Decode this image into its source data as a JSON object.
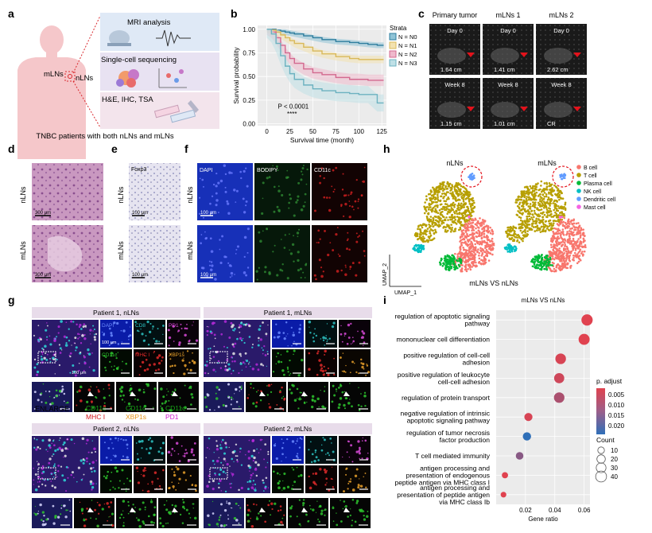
{
  "panels": {
    "a": "a",
    "b": "b",
    "c": "c",
    "d": "d",
    "e": "e",
    "f": "f",
    "g": "g",
    "h": "h",
    "i": "i"
  },
  "panel_a": {
    "mri": "MRI analysis",
    "scseq": "Single-cell sequencing",
    "staining": "H&E, IHC, TSA",
    "mlns": "mLNs",
    "nlns": "nLNs",
    "caption": "TNBC patients with both nLNs and mLNs"
  },
  "panel_c": {
    "cols": [
      "Primary tumor",
      "mLNs 1",
      "mLNs 2"
    ],
    "day0": "Day 0",
    "week8": "Week 8",
    "sizes_day0": [
      "1.64 cm",
      "1.41 cm",
      "2.62 cm"
    ],
    "sizes_week8": [
      "1.15 cm",
      "1.01 cm",
      "CR"
    ]
  },
  "panel_d": {
    "rows": [
      "nLNs",
      "mLNs"
    ],
    "scale": "300 μm"
  },
  "panel_e": {
    "rows": [
      "nLNs",
      "mLNs"
    ],
    "marker": "Foxp3",
    "scale": "100 μm"
  },
  "panel_f": {
    "rows": [
      "nLNs",
      "mLNs"
    ],
    "cols": [
      "DAPI",
      "BODIPY",
      "CD11c"
    ],
    "scale": "100 μm"
  },
  "panel_g": {
    "p1_nlns": "Patient 1, nLNs",
    "p1_mlns": "Patient 1, mLNs",
    "p2_nlns": "Patient 2, nLNs",
    "p2_mlns": "Patient 2, mLNs",
    "channels": [
      "DAPI",
      "CD8",
      "PD1",
      "CD11c",
      "MHC I",
      "XBP1s"
    ],
    "scale": "100 μm",
    "enlarge": "ENLARGE",
    "legend": [
      {
        "l1": "CD11c",
        "l2": "MHC I",
        "c1": "#17a317",
        "c2": "#d6161a"
      },
      {
        "l1": "CD11c",
        "l2": "XBP1s",
        "c1": "#17a317",
        "c2": "#e59319"
      },
      {
        "l1": "CD11c",
        "l2": "PD1",
        "c1": "#17a317",
        "c2": "#cc1acc"
      }
    ]
  },
  "panel_h": {
    "left": "nLNs",
    "right": "mLNs",
    "xlabel": "UMAP_1",
    "ylabel": "UMAP_2",
    "subtitle": "mLNs VS nLNs",
    "legend": [
      {
        "name": "B cell",
        "color": "#f8766d"
      },
      {
        "name": "T cell",
        "color": "#b79f00"
      },
      {
        "name": "Plasma cell",
        "color": "#00ba38"
      },
      {
        "name": "NK cell",
        "color": "#00bfc4"
      },
      {
        "name": "Dendritic cell",
        "color": "#619cff"
      },
      {
        "name": "Mast cell",
        "color": "#f564e3"
      }
    ]
  },
  "chart_data": [
    {
      "panel": "b",
      "type": "line",
      "title": "",
      "xlabel": "Survival time (month)",
      "ylabel": "Survival probability",
      "xlim": [
        -10,
        130
      ],
      "ylim": [
        -0.02,
        1.04
      ],
      "xticks": [
        0,
        25,
        50,
        75,
        100,
        125
      ],
      "yticks": [
        0.0,
        0.25,
        0.5,
        0.75,
        1.0
      ],
      "yticklabels": [
        "0.00",
        "0.25",
        "0.50",
        "0.75",
        "1.00"
      ],
      "legend_title": "Strata",
      "annotation": "P < 0.0001",
      "annotation2": "****",
      "series": [
        {
          "name": "N = N0",
          "color": "#2e7d9e",
          "fill": "#8fc3d6",
          "x": [
            0,
            5,
            10,
            15,
            20,
            25,
            30,
            40,
            50,
            60,
            75,
            90,
            100,
            110,
            120,
            127
          ],
          "y": [
            1.0,
            1.0,
            0.99,
            0.98,
            0.97,
            0.96,
            0.95,
            0.93,
            0.91,
            0.89,
            0.87,
            0.86,
            0.85,
            0.84,
            0.83,
            0.83
          ],
          "band": 0.03
        },
        {
          "name": "N = N1",
          "color": "#d9b95a",
          "fill": "#f3e2b0",
          "x": [
            0,
            5,
            10,
            15,
            20,
            25,
            30,
            40,
            50,
            60,
            75,
            90,
            100,
            110,
            120,
            127
          ],
          "y": [
            1.0,
            0.99,
            0.97,
            0.94,
            0.91,
            0.88,
            0.85,
            0.81,
            0.77,
            0.74,
            0.71,
            0.69,
            0.68,
            0.68,
            0.68,
            0.68
          ],
          "band": 0.04
        },
        {
          "name": "N = N2",
          "color": "#d3698f",
          "fill": "#efb9cc",
          "x": [
            0,
            5,
            10,
            15,
            20,
            25,
            30,
            40,
            50,
            60,
            75,
            90,
            100,
            110,
            120,
            127
          ],
          "y": [
            1.0,
            0.97,
            0.91,
            0.83,
            0.75,
            0.69,
            0.64,
            0.58,
            0.54,
            0.52,
            0.49,
            0.47,
            0.47,
            0.46,
            0.46,
            0.46
          ],
          "band": 0.06
        },
        {
          "name": "N = N3",
          "color": "#6cb2c0",
          "fill": "#bfe0e6",
          "x": [
            0,
            5,
            10,
            15,
            20,
            25,
            30,
            40,
            50,
            60,
            75,
            90,
            100,
            110,
            120,
            127
          ],
          "y": [
            1.0,
            0.95,
            0.85,
            0.72,
            0.61,
            0.53,
            0.47,
            0.41,
            0.37,
            0.35,
            0.33,
            0.32,
            0.31,
            0.31,
            0.22,
            0.22
          ],
          "band": 0.09
        }
      ]
    },
    {
      "panel": "i",
      "type": "scatter",
      "title": "mLNs VS nLNs",
      "xlabel": "Gene ratio",
      "xlim": [
        0.0,
        0.064
      ],
      "xticks": [
        0.02,
        0.04,
        0.06
      ],
      "xticklabels": [
        "0.02",
        "0.04",
        "0.06"
      ],
      "color_legend_title": "p. adjust",
      "color_ticks": [
        "0.005",
        "0.010",
        "0.015",
        "0.020"
      ],
      "size_legend_title": "Count",
      "size_ticks": [
        "10",
        "20",
        "30",
        "40"
      ],
      "terms": [
        {
          "label": [
            "regulation of apoptotic signaling",
            "pathway"
          ],
          "ratio": 0.062,
          "count": 43,
          "padj": 0.001
        },
        {
          "label": [
            "mononuclear cell differentiation"
          ],
          "ratio": 0.06,
          "count": 41,
          "padj": 0.001
        },
        {
          "label": [
            "positive regulation of cell-cell",
            "adhesion"
          ],
          "ratio": 0.044,
          "count": 37,
          "padj": 0.002
        },
        {
          "label": [
            "positive regulation of leukocyte",
            "cell-cell adhesion"
          ],
          "ratio": 0.043,
          "count": 33,
          "padj": 0.003
        },
        {
          "label": [
            "regulation of protein transport"
          ],
          "ratio": 0.043,
          "count": 36,
          "padj": 0.007
        },
        {
          "label": [
            "negative regulation of intrinsic",
            "apoptotic signaling pathway"
          ],
          "ratio": 0.022,
          "count": 18,
          "padj": 0.002
        },
        {
          "label": [
            "regulation of tumor necrosis",
            "factor production"
          ],
          "ratio": 0.021,
          "count": 19,
          "padj": 0.021
        },
        {
          "label": [
            "T cell mediated immunity"
          ],
          "ratio": 0.016,
          "count": 15,
          "padj": 0.011
        },
        {
          "label": [
            "antigen processing and",
            "presentation of endogenous",
            "peptide antigen via MHC class I"
          ],
          "ratio": 0.006,
          "count": 8,
          "padj": 0.001
        },
        {
          "label": [
            "antigen processing and",
            "presentation of peptide antigen",
            "via MHC class Ib"
          ],
          "ratio": 0.005,
          "count": 6,
          "padj": 0.001
        }
      ]
    }
  ]
}
